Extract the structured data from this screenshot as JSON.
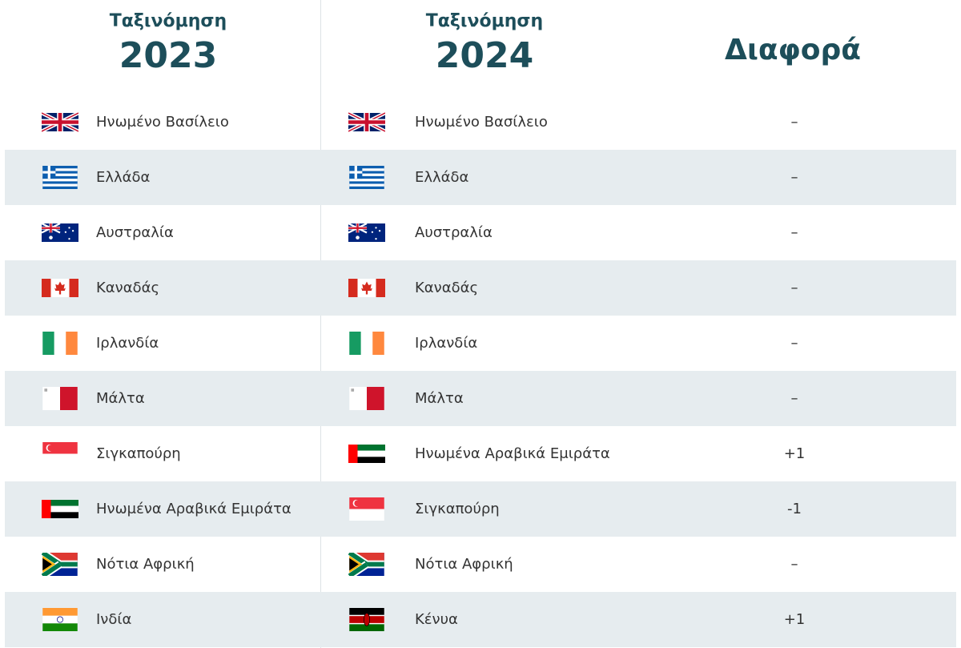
{
  "header": {
    "col1_label": "Ταξινόμηση",
    "col1_year": "2023",
    "col2_label": "Ταξινόμηση",
    "col2_year": "2024",
    "col3_label": "Διαφορά"
  },
  "table": {
    "rows": [
      [
        "Ηνωμένο Βασίλειο",
        "Ηνωμένο Βασίλειο",
        "–"
      ],
      [
        "Ελλάδα",
        "Ελλάδα",
        "–"
      ],
      [
        "Αυστραλία",
        "Αυστραλία",
        "–"
      ],
      [
        "Καναδάς",
        "Καναδάς",
        "–"
      ],
      [
        "Ιρλανδία",
        "Ιρλανδία",
        "–"
      ],
      [
        "Μάλτα",
        "Μάλτα",
        "–"
      ],
      [
        "Σιγκαπούρη",
        "Ηνωμένα Αραβικά Εμιράτα",
        "+1"
      ],
      [
        "Ηνωμένα Αραβικά Εμιράτα",
        "Σιγκαπούρη",
        "-1"
      ],
      [
        "Νότια Αφρική",
        "Νότια Αφρική",
        "–"
      ],
      [
        "Ινδία",
        "Κένυα",
        "+1"
      ]
    ]
  }
}
